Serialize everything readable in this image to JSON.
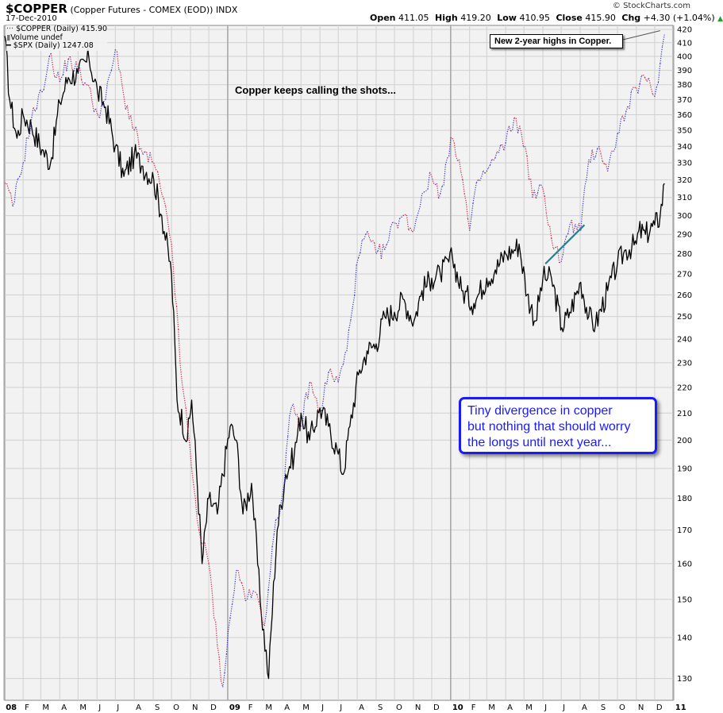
{
  "header": {
    "symbol": "$COPPER",
    "description": "(Copper Futures - COMEX (EOD))",
    "exchange": "INDX",
    "date": "17-Dec-2010",
    "open_label": "Open",
    "open": "411.05",
    "high_label": "High",
    "high": "419.20",
    "low_label": "Low",
    "low": "410.95",
    "close_label": "Close",
    "close": "415.90",
    "chg_label": "Chg",
    "chg": "+4.30 (+1.04%)",
    "chg_arrow": "▲",
    "copyright": "© StockCharts.com"
  },
  "legend": {
    "copper": "$COPPER (Daily) 415.90",
    "volume": "Volume undef",
    "spx": "$SPX (Daily) 1247.08"
  },
  "annotations": {
    "title": "Copper keeps calling the shots...",
    "new_highs": "New 2-year highs in Copper.",
    "callout_line1": "Tiny divergence in copper",
    "callout_line2": "but nothing that should worry",
    "callout_line3": "the longs until next year..."
  },
  "colors": {
    "copper_up": "#3333cc",
    "copper_down": "#cc2244",
    "spx": "#000000",
    "trendline": "#2a7f8f",
    "callout": "#1a1aff",
    "plot_bg": "#f2f2f2",
    "grid": "#d0d0d0"
  },
  "chart_data": {
    "type": "line",
    "title": "",
    "ylabel": "",
    "ylim": [
      125,
      423
    ],
    "y_scale": "log",
    "yticks": [
      130,
      140,
      150,
      160,
      170,
      180,
      190,
      200,
      210,
      220,
      230,
      240,
      250,
      260,
      270,
      280,
      290,
      300,
      310,
      320,
      330,
      340,
      350,
      360,
      370,
      380,
      390,
      400,
      410,
      420
    ],
    "xlim": [
      "2008-01-02",
      "2010-12-31"
    ],
    "x_tick_labels": [
      "08",
      "F",
      "M",
      "A",
      "M",
      "J",
      "J",
      "A",
      "S",
      "O",
      "N",
      "D",
      "09",
      "F",
      "M",
      "A",
      "M",
      "J",
      "J",
      "A",
      "S",
      "O",
      "N",
      "D",
      "10",
      "F",
      "M",
      "A",
      "M",
      "J",
      "J",
      "A",
      "S",
      "O",
      "N",
      "D",
      "11"
    ],
    "series": [
      {
        "name": "$COPPER (Daily)",
        "style": "dotted",
        "x": [
          "2008-01-02",
          "2008-01-15",
          "2008-02-01",
          "2008-02-15",
          "2008-03-03",
          "2008-03-15",
          "2008-04-01",
          "2008-04-15",
          "2008-05-01",
          "2008-05-15",
          "2008-06-02",
          "2008-06-15",
          "2008-07-01",
          "2008-07-15",
          "2008-08-01",
          "2008-08-15",
          "2008-09-02",
          "2008-09-15",
          "2008-10-01",
          "2008-10-15",
          "2008-11-03",
          "2008-11-15",
          "2008-12-01",
          "2008-12-15",
          "2008-12-24",
          "2009-01-05",
          "2009-01-15",
          "2009-02-02",
          "2009-02-15",
          "2009-03-02",
          "2009-03-15",
          "2009-04-01",
          "2009-04-15",
          "2009-05-01",
          "2009-05-15",
          "2009-06-01",
          "2009-06-15",
          "2009-07-01",
          "2009-07-15",
          "2009-08-03",
          "2009-08-15",
          "2009-09-01",
          "2009-09-15",
          "2009-10-01",
          "2009-10-15",
          "2009-11-02",
          "2009-11-15",
          "2009-12-01",
          "2009-12-15",
          "2010-01-04",
          "2010-01-15",
          "2010-02-01",
          "2010-02-15",
          "2010-03-01",
          "2010-03-15",
          "2010-04-01",
          "2010-04-15",
          "2010-05-03",
          "2010-05-15",
          "2010-06-01",
          "2010-06-15",
          "2010-07-01",
          "2010-07-15",
          "2010-08-02",
          "2010-08-15",
          "2010-09-01",
          "2010-09-15",
          "2010-10-01",
          "2010-10-15",
          "2010-11-01",
          "2010-11-15",
          "2010-12-01",
          "2010-12-10",
          "2010-12-17"
        ],
        "values": [
          318,
          305,
          330,
          358,
          375,
          400,
          382,
          398,
          390,
          380,
          360,
          370,
          405,
          372,
          350,
          335,
          330,
          312,
          285,
          230,
          190,
          170,
          160,
          138,
          128,
          145,
          158,
          150,
          152,
          143,
          165,
          182,
          212,
          205,
          222,
          210,
          226,
          222,
          235,
          278,
          290,
          280,
          282,
          296,
          300,
          292,
          312,
          322,
          312,
          345,
          332,
          292,
          320,
          325,
          333,
          342,
          358,
          340,
          310,
          315,
          288,
          276,
          295,
          292,
          332,
          340,
          325,
          348,
          362,
          378,
          385,
          372,
          395,
          416
        ],
        "change_color_rule": "segments colored up/down"
      },
      {
        "name": "$SPX (Daily)",
        "style": "solid",
        "x": [
          "2008-01-02",
          "2008-01-10",
          "2008-01-22",
          "2008-02-01",
          "2008-02-15",
          "2008-03-03",
          "2008-03-17",
          "2008-04-01",
          "2008-04-15",
          "2008-05-01",
          "2008-05-19",
          "2008-06-02",
          "2008-06-15",
          "2008-07-01",
          "2008-07-15",
          "2008-08-01",
          "2008-08-15",
          "2008-09-02",
          "2008-09-15",
          "2008-10-01",
          "2008-10-10",
          "2008-10-27",
          "2008-11-03",
          "2008-11-20",
          "2008-12-01",
          "2008-12-15",
          "2009-01-05",
          "2009-01-15",
          "2009-01-26",
          "2009-02-09",
          "2009-02-23",
          "2009-03-09",
          "2009-03-23",
          "2009-04-06",
          "2009-04-20",
          "2009-05-01",
          "2009-05-15",
          "2009-06-01",
          "2009-06-15",
          "2009-07-01",
          "2009-07-09",
          "2009-07-20",
          "2009-08-03",
          "2009-08-17",
          "2009-09-01",
          "2009-09-15",
          "2009-10-01",
          "2009-10-15",
          "2009-11-02",
          "2009-11-15",
          "2009-12-01",
          "2009-12-15",
          "2010-01-04",
          "2010-01-19",
          "2010-02-08",
          "2010-02-15",
          "2010-03-01",
          "2010-03-15",
          "2010-04-01",
          "2010-04-15",
          "2010-04-23",
          "2010-05-06",
          "2010-05-20",
          "2010-06-01",
          "2010-06-15",
          "2010-07-02",
          "2010-07-15",
          "2010-08-02",
          "2010-08-15",
          "2010-08-26",
          "2010-09-15",
          "2010-10-01",
          "2010-10-15",
          "2010-11-01",
          "2010-11-05",
          "2010-11-16",
          "2010-12-01",
          "2010-12-10",
          "2010-12-17"
        ],
        "values": [
          415,
          370,
          345,
          360,
          352,
          338,
          330,
          368,
          385,
          388,
          398,
          375,
          365,
          340,
          322,
          335,
          328,
          320,
          300,
          270,
          215,
          200,
          215,
          160,
          180,
          175,
          205,
          200,
          175,
          185,
          150,
          130,
          170,
          188,
          195,
          210,
          200,
          212,
          205,
          195,
          188,
          205,
          225,
          235,
          238,
          250,
          252,
          258,
          248,
          262,
          268,
          270,
          278,
          262,
          256,
          260,
          268,
          272,
          280,
          282,
          285,
          260,
          248,
          268,
          268,
          245,
          252,
          266,
          250,
          246,
          262,
          275,
          282,
          285,
          292,
          290,
          295,
          300,
          318
        ],
        "axis_note": "right axis labels belong to $COPPER; $SPX overlaid"
      }
    ],
    "trendline": {
      "x": [
        "2010-06-05",
        "2010-08-08"
      ],
      "values": [
        275,
        295
      ]
    }
  }
}
